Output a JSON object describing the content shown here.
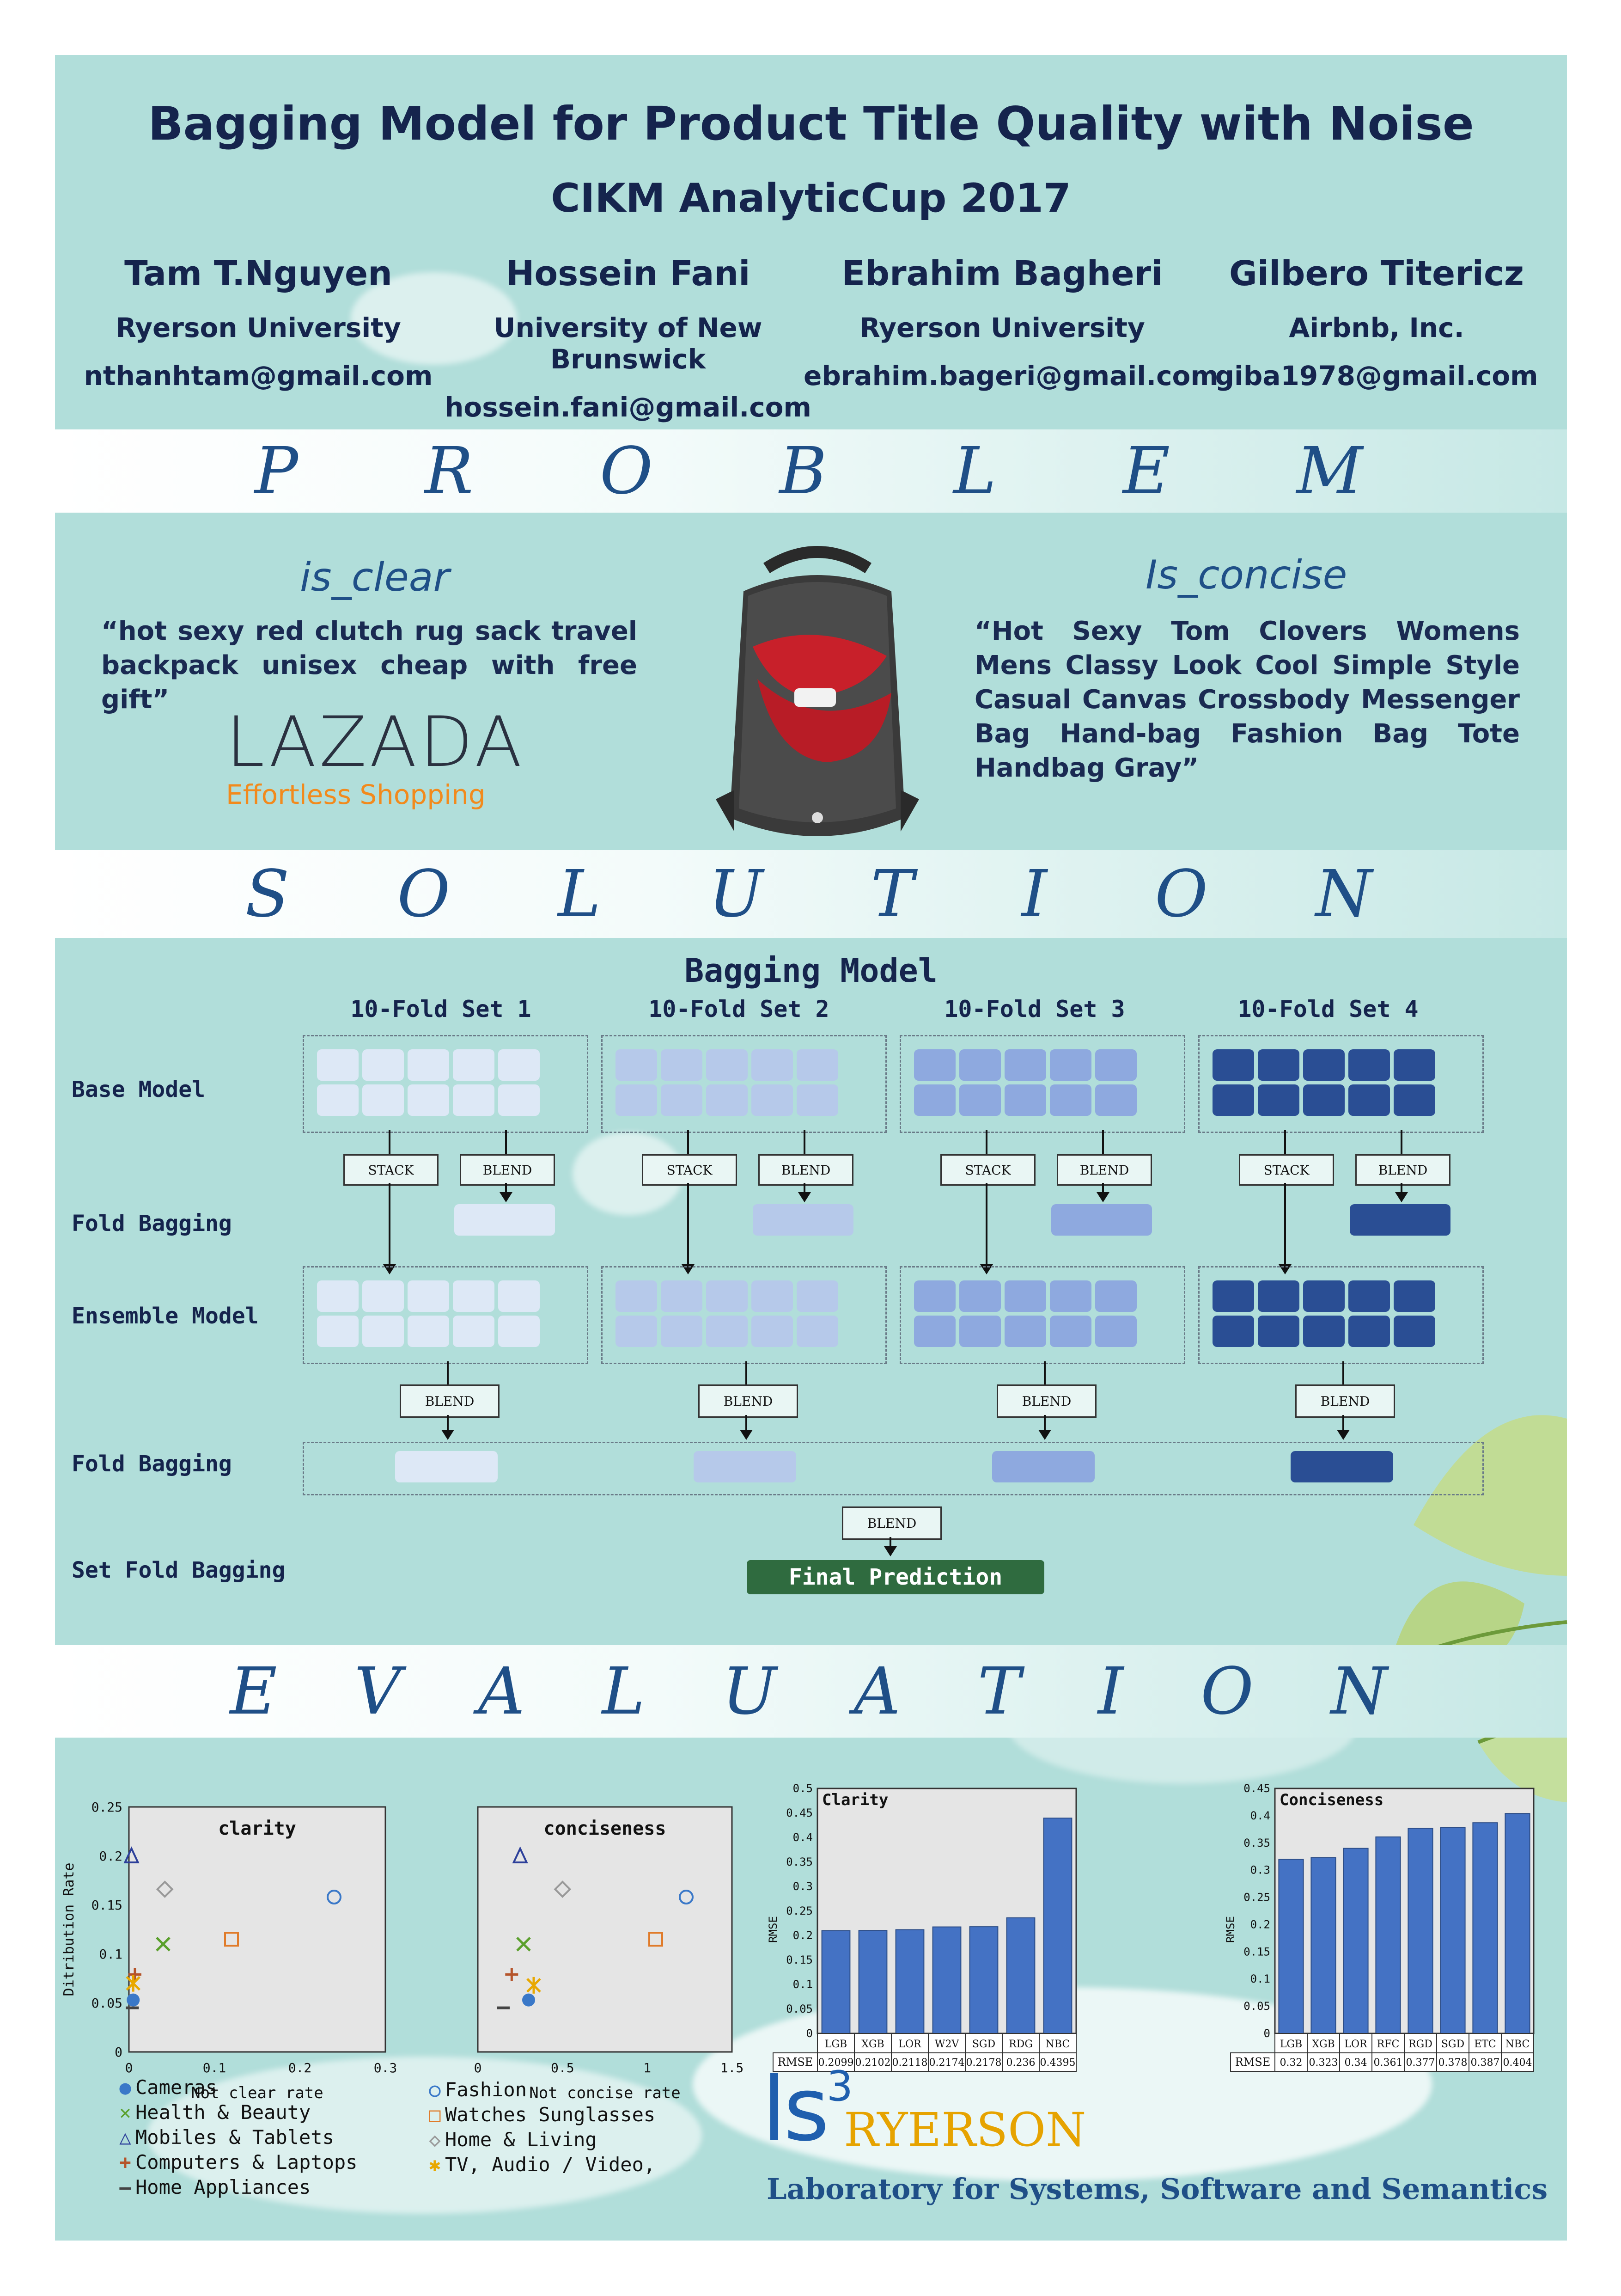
{
  "header": {
    "title": "Bagging Model for Product Title Quality with Noise",
    "subtitle": "CIKM AnalyticCup 2017",
    "authors": [
      {
        "name": "Tam T.Nguyen",
        "affiliation": "Ryerson University",
        "email": "nthanhtam@gmail.com"
      },
      {
        "name": "Hossein Fani",
        "affiliation": "University of New Brunswick",
        "email": "hossein.fani@gmail.com"
      },
      {
        "name": "Ebrahim Bagheri",
        "affiliation": "Ryerson University",
        "email": "ebrahim.bageri@gmail.com"
      },
      {
        "name": "Gilbero Titericz",
        "affiliation": "Airbnb, Inc.",
        "email": "giba1978@gmail.com"
      }
    ]
  },
  "sections": {
    "problem": [
      "P",
      "R",
      "O",
      "B",
      "L",
      "E",
      "M"
    ],
    "solution": [
      "S",
      "O",
      "L",
      "U",
      "T",
      "I",
      "O",
      "N"
    ],
    "evaluation": [
      "E",
      "V",
      "A",
      "L",
      "U",
      "A",
      "T",
      "I",
      "O",
      "N"
    ]
  },
  "problem": {
    "clear_label": "is_clear",
    "clear_quote": "“hot sexy red clutch rug sack travel backpack unisex cheap with free gift”",
    "concise_label": "Is_concise",
    "concise_quote": "“Hot Sexy Tom Clovers Womens Mens Classy Look Cool Simple Style Casual Canvas Crossbody Messenger Bag Hand-bag Fashion Bag Tote Handbag Gray”",
    "logo_name": "LAZADA",
    "logo_tagline": "Effortless Shopping"
  },
  "solution": {
    "title": "Bagging Model",
    "sets": [
      "10-Fold Set 1",
      "10-Fold Set 2",
      "10-Fold Set 3",
      "10-Fold Set 4"
    ],
    "set_colors": [
      "#dde8f6",
      "#b6c9ea",
      "#8ea9df",
      "#2a4e94"
    ],
    "rows": {
      "base": "Base Model",
      "fold1": "Fold Bagging",
      "ensemble": "Ensemble Model",
      "fold2": "Fold Bagging",
      "setfold": "Set Fold Bagging"
    },
    "stack": "STACK",
    "blend": "BLEND",
    "final": "Final Prediction"
  },
  "chart_data": [
    {
      "type": "scatter",
      "title": "clarity",
      "xlabel": "Not clear rate",
      "ylabel": "Ditribution Rate",
      "xlim": [
        0,
        0.3
      ],
      "ylim": [
        0,
        0.25
      ],
      "xticks": [
        "0",
        "0.1",
        "0.2",
        "0.3"
      ],
      "yticks": [
        "0",
        "0.05",
        "0.1",
        "0.15",
        "0.2",
        "0.25"
      ],
      "points": [
        {
          "category": "Cameras",
          "x": 0.005,
          "y": 0.053
        },
        {
          "category": "Health & Beauty",
          "x": 0.04,
          "y": 0.11
        },
        {
          "category": "Mobiles & Tablets",
          "x": 0.003,
          "y": 0.2
        },
        {
          "category": "Computers & Laptops",
          "x": 0.007,
          "y": 0.079
        },
        {
          "category": "Home Appliances",
          "x": 0.004,
          "y": 0.045
        },
        {
          "category": "Fashion",
          "x": 0.24,
          "y": 0.158
        },
        {
          "category": "Watches Sunglasses",
          "x": 0.12,
          "y": 0.115
        },
        {
          "category": "Home & Living",
          "x": 0.042,
          "y": 0.166
        },
        {
          "category": "TV, Audio / Video,",
          "x": 0.005,
          "y": 0.07
        }
      ]
    },
    {
      "type": "scatter",
      "title": "conciseness",
      "xlabel": "Not concise rate",
      "ylabel": "",
      "xlim": [
        0,
        1.5
      ],
      "ylim": [
        0,
        0.25
      ],
      "xticks": [
        "0",
        "0.5",
        "1",
        "1.5"
      ],
      "yticks": [],
      "points": [
        {
          "category": "Cameras",
          "x": 0.3,
          "y": 0.053
        },
        {
          "category": "Health & Beauty",
          "x": 0.27,
          "y": 0.11
        },
        {
          "category": "Mobiles & Tablets",
          "x": 0.25,
          "y": 0.2
        },
        {
          "category": "Computers & Laptops",
          "x": 0.2,
          "y": 0.079
        },
        {
          "category": "Home Appliances",
          "x": 0.15,
          "y": 0.045
        },
        {
          "category": "Fashion",
          "x": 1.23,
          "y": 0.158
        },
        {
          "category": "Watches Sunglasses",
          "x": 1.05,
          "y": 0.115
        },
        {
          "category": "Home & Living",
          "x": 0.5,
          "y": 0.166
        },
        {
          "category": "TV, Audio / Video,",
          "x": 0.33,
          "y": 0.068
        }
      ]
    },
    {
      "type": "bar",
      "title": "Clarity",
      "ylabel": "RMSE",
      "ylim": [
        0,
        0.5
      ],
      "yticks": [
        "0",
        "0.05",
        "0.1",
        "0.15",
        "0.2",
        "0.25",
        "0.3",
        "0.35",
        "0.4",
        "0.45",
        "0.5"
      ],
      "categories": [
        "LGB",
        "XGB",
        "LOR",
        "W2V",
        "SGD",
        "RDG",
        "NBC"
      ],
      "values": [
        0.2099,
        0.2102,
        0.2118,
        0.2174,
        0.2178,
        0.236,
        0.4395
      ],
      "table_label": "RMSE",
      "value_labels": [
        "0.2099",
        "0.2102",
        "0.2118",
        "0.2174",
        "0.2178",
        "0.236",
        "0.4395"
      ],
      "color": "#4472c4"
    },
    {
      "type": "bar",
      "title": "Conciseness",
      "ylabel": "RMSE",
      "ylim": [
        0,
        0.45
      ],
      "yticks": [
        "0",
        "0.05",
        "0.1",
        "0.15",
        "0.2",
        "0.25",
        "0.3",
        "0.35",
        "0.4",
        "0.45"
      ],
      "categories": [
        "LGB",
        "XGB",
        "LOR",
        "RFC",
        "RGD",
        "SGD",
        "ETC",
        "NBC"
      ],
      "values": [
        0.32,
        0.323,
        0.34,
        0.361,
        0.377,
        0.378,
        0.387,
        0.404
      ],
      "table_label": "RMSE",
      "value_labels": [
        "0.32",
        "0.323",
        "0.34",
        "0.361",
        "0.377",
        "0.378",
        "0.387",
        "0.404"
      ],
      "color": "#4472c4"
    }
  ],
  "legend": [
    {
      "label": "Cameras",
      "marker": "filled-circle",
      "color": "#3a78c8"
    },
    {
      "label": "Health & Beauty",
      "marker": "x",
      "color": "#5aa02c"
    },
    {
      "label": "Mobiles & Tablets",
      "marker": "triangle",
      "color": "#2c3f9a"
    },
    {
      "label": "Computers & Laptops",
      "marker": "plus",
      "color": "#b5542a"
    },
    {
      "label": "Home Appliances",
      "marker": "dash",
      "color": "#444444"
    },
    {
      "label": "Fashion",
      "marker": "circle",
      "color": "#3a78c8"
    },
    {
      "label": "Watches Sunglasses",
      "marker": "square",
      "color": "#e07b2a"
    },
    {
      "label": "Home & Living",
      "marker": "diamond",
      "color": "#999999"
    },
    {
      "label": "TV, Audio / Video,",
      "marker": "star",
      "color": "#e8a800"
    }
  ],
  "footer": {
    "lab_logo": "ls",
    "lab_sup": "3",
    "lab_name": "RYERSON",
    "lab_full": "Laboratory for Systems, Software and Semantics"
  }
}
